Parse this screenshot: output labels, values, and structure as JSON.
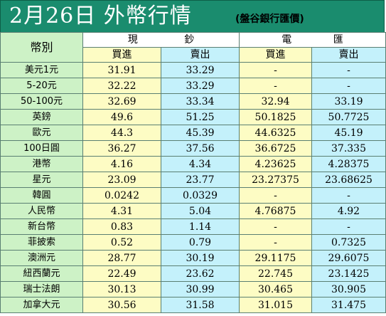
{
  "header": {
    "title": "2月26日 外幣行情",
    "subtitle": "(盤谷銀行匯價)"
  },
  "table": {
    "corner_label": "幣別",
    "groups": [
      {
        "label": "現　　鈔",
        "chars": [
          "現",
          "鈔"
        ]
      },
      {
        "label": "電　　匯",
        "chars": [
          "電",
          "匯"
        ]
      }
    ],
    "sub_headers": [
      "買進",
      "賣出",
      "買進",
      "賣出"
    ],
    "rows": [
      {
        "currency": "美元1元",
        "cash_buy": "31.91",
        "cash_sell": "33.29",
        "tt_buy": "-",
        "tt_sell": "-"
      },
      {
        "currency": "5-20元",
        "cash_buy": "32.22",
        "cash_sell": "33.29",
        "tt_buy": "-",
        "tt_sell": "-"
      },
      {
        "currency": "50-100元",
        "cash_buy": "32.69",
        "cash_sell": "33.34",
        "tt_buy": "32.94",
        "tt_sell": "33.19"
      },
      {
        "currency": "英鎊",
        "cash_buy": "49.6",
        "cash_sell": "51.25",
        "tt_buy": "50.1825",
        "tt_sell": "50.7725"
      },
      {
        "currency": "歐元",
        "cash_buy": "44.3",
        "cash_sell": "45.39",
        "tt_buy": "44.6325",
        "tt_sell": "45.19"
      },
      {
        "currency": "100日圓",
        "cash_buy": "36.27",
        "cash_sell": "37.56",
        "tt_buy": "36.6725",
        "tt_sell": "37.335"
      },
      {
        "currency": "港幣",
        "cash_buy": "4.16",
        "cash_sell": "4.34",
        "tt_buy": "4.23625",
        "tt_sell": "4.28375"
      },
      {
        "currency": "星元",
        "cash_buy": "23.09",
        "cash_sell": "23.77",
        "tt_buy": "23.27375",
        "tt_sell": "23.68625"
      },
      {
        "currency": "韓圓",
        "cash_buy": "0.0242",
        "cash_sell": "0.0329",
        "tt_buy": "-",
        "tt_sell": "-"
      },
      {
        "currency": "人民幣",
        "cash_buy": "4.31",
        "cash_sell": "5.04",
        "tt_buy": "4.76875",
        "tt_sell": "4.92"
      },
      {
        "currency": "新台幣",
        "cash_buy": "0.83",
        "cash_sell": "1.14",
        "tt_buy": "-",
        "tt_sell": "-"
      },
      {
        "currency": "菲披索",
        "cash_buy": "0.52",
        "cash_sell": "0.79",
        "tt_buy": "-",
        "tt_sell": "0.7325"
      },
      {
        "currency": "澳洲元",
        "cash_buy": "28.77",
        "cash_sell": "30.19",
        "tt_buy": "29.1175",
        "tt_sell": "29.6075"
      },
      {
        "currency": "紐西蘭元",
        "cash_buy": "22.49",
        "cash_sell": "23.62",
        "tt_buy": "22.745",
        "tt_sell": "23.1425"
      },
      {
        "currency": "瑞士法朗",
        "cash_buy": "30.13",
        "cash_sell": "30.99",
        "tt_buy": "30.465",
        "tt_sell": "30.905"
      },
      {
        "currency": "加拿大元",
        "cash_buy": "30.56",
        "cash_sell": "31.58",
        "tt_buy": "31.015",
        "tt_sell": "31.475"
      }
    ]
  },
  "colors": {
    "title_bar": "#1a8c6e",
    "currency_cell": "#cdf2c6",
    "buy_cell": "#fdfcc4",
    "sell_cell": "#c4f1fb"
  }
}
